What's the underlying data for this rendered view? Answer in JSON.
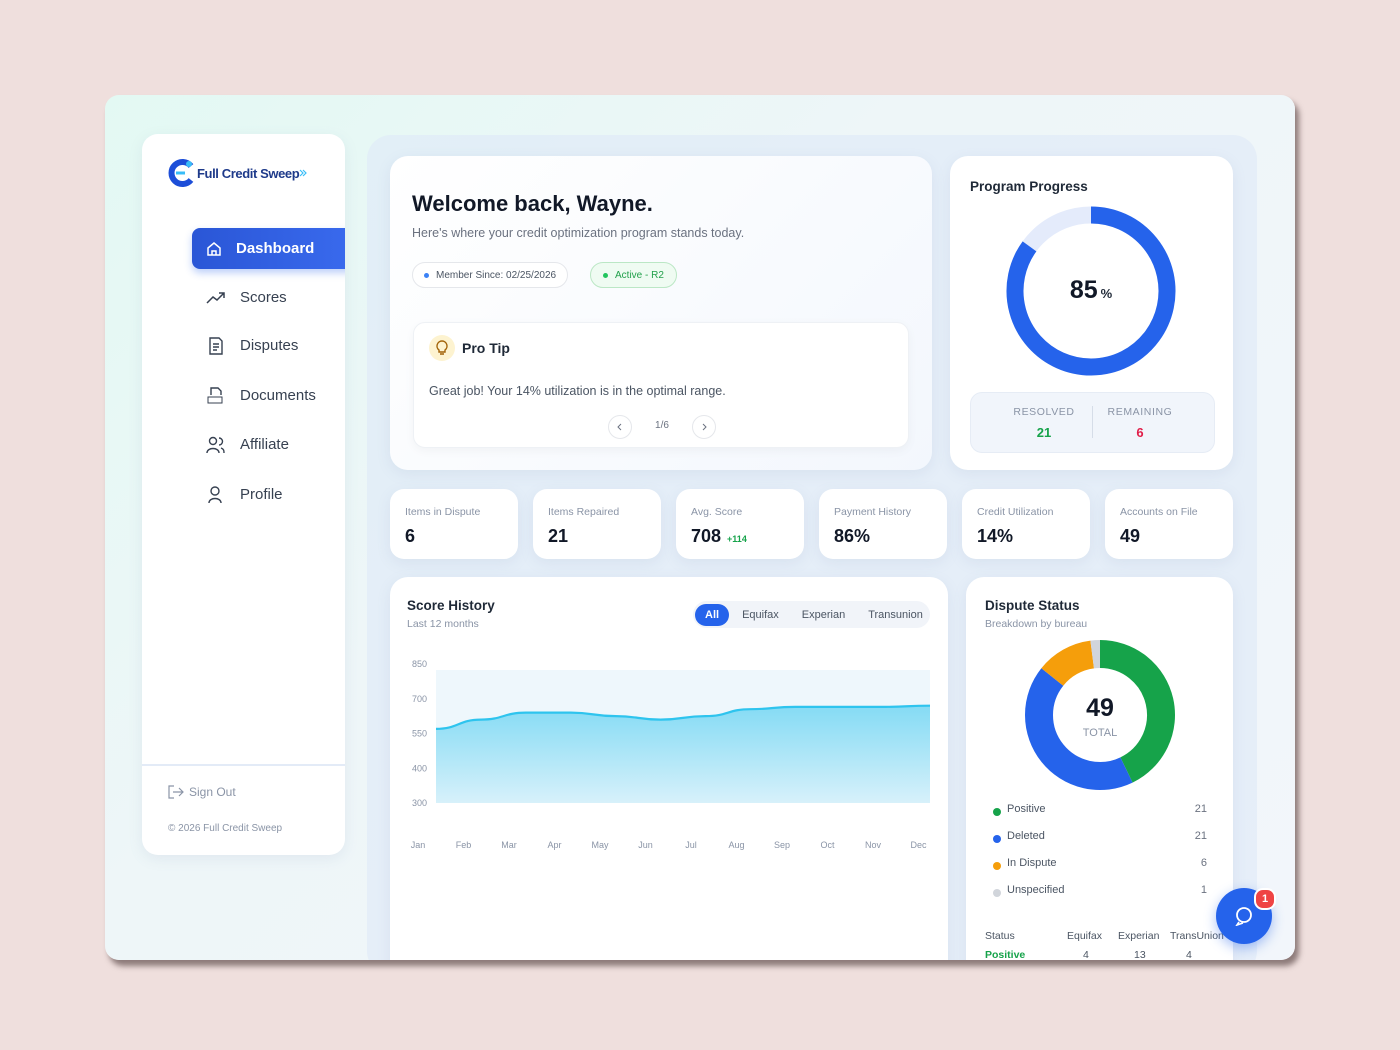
{
  "brand": "Full Credit Sweep",
  "nav": [
    "Dashboard",
    "Scores",
    "Disputes",
    "Documents",
    "Affiliate",
    "Profile"
  ],
  "sign_out": "Sign Out",
  "footer": "© 2026 Full Credit Sweep",
  "welcome": {
    "title": "Welcome back, Wayne.",
    "subtitle": "Here's where your credit optimization program stands today.",
    "member_since": "Member Since: 02/25/2026",
    "status": "Active - R2"
  },
  "pro_tip": {
    "title": "Pro Tip",
    "text": "Great job! Your 14% utilization is in the optimal range.",
    "pager": "1/6"
  },
  "program_progress": {
    "title": "Program Progress",
    "percent": 85,
    "unit": "%",
    "color": "#2563eb",
    "resolved_label": "RESOLVED",
    "resolved": 21,
    "remaining_label": "REMAINING",
    "remaining": 6
  },
  "stats": [
    {
      "label": "Items in Dispute",
      "value": 6
    },
    {
      "label": "Items Repaired",
      "value": 21
    },
    {
      "label": "Avg. Score",
      "value": 708,
      "delta": "+114"
    },
    {
      "label": "Payment History",
      "value": "86%"
    },
    {
      "label": "Credit Utilization",
      "value": "14%"
    },
    {
      "label": "Accounts on File",
      "value": 49
    }
  ],
  "score_history": {
    "title": "Score History",
    "subtitle": "Last 12 months",
    "tabs": [
      "All",
      "Equifax",
      "Experian",
      "Transunion"
    ],
    "chart": {
      "type": "area",
      "x": [
        "Jan",
        "Feb",
        "Mar",
        "Apr",
        "May",
        "Jun",
        "Jul",
        "Aug",
        "Sep",
        "Oct",
        "Nov",
        "Dec"
      ],
      "values": [
        570,
        610,
        640,
        640,
        625,
        610,
        625,
        655,
        665,
        665,
        665,
        670
      ],
      "color": "#2ec4ee",
      "ylim": [
        300,
        850
      ],
      "yticks": [
        300,
        400,
        550,
        700,
        850
      ]
    }
  },
  "dispute_status": {
    "title": "Dispute Status",
    "subtitle": "Breakdown by bureau",
    "total": 49,
    "total_label": "TOTAL",
    "chart": {
      "type": "donut",
      "categories": [
        "Positive",
        "Deleted",
        "In Dispute",
        "Unspecified"
      ],
      "values": [
        21,
        21,
        6,
        1
      ],
      "colors": [
        "#16a34a",
        "#2563eb",
        "#f59e0b",
        "#d1d5db"
      ]
    },
    "table": {
      "header": [
        "Status",
        "Equifax",
        "Experian",
        "TransUnion"
      ],
      "rows": [
        [
          "Positive",
          4,
          13,
          4
        ]
      ]
    }
  },
  "chat_badge": 1
}
